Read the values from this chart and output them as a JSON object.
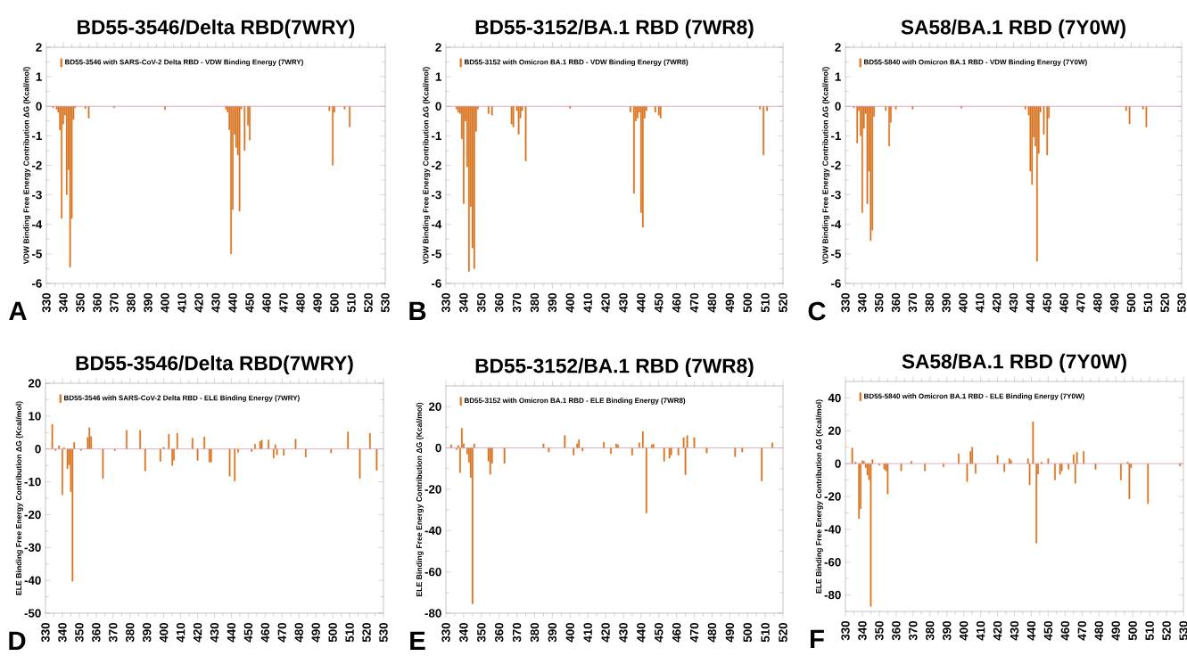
{
  "chart_data": [
    {
      "type": "bar",
      "title": "BD55-3546/Delta RBD(7WRY)",
      "ylabel": "VDW  Binding Free Energy Contribution    ΔG (Kcal/mol)",
      "annotations": [
        "A"
      ],
      "legend": "top left",
      "series": [
        {
          "name": "BD55-3546 with SARS-CoV-2 Delta RBD -  VDW Binding Energy (7WRY)",
          "color": "#d9731e",
          "x": [
            334,
            336,
            337,
            338,
            339,
            340,
            341,
            342,
            343,
            344,
            345,
            346,
            347,
            353,
            355,
            370,
            400,
            436,
            437,
            438,
            439,
            440,
            441,
            442,
            443,
            444,
            445,
            447,
            449,
            450,
            497,
            499,
            500,
            506,
            509
          ],
          "values": [
            -0.05,
            -0.1,
            -0.2,
            -0.8,
            -3.8,
            -0.6,
            -0.3,
            -3.0,
            -2.15,
            -5.45,
            -3.8,
            -0.45,
            -0.05,
            -0.08,
            -0.4,
            -0.05,
            -0.12,
            -0.1,
            -0.2,
            -0.8,
            -5.0,
            -3.5,
            -0.95,
            -1.4,
            -1.65,
            -3.55,
            -0.1,
            -1.5,
            -0.65,
            -1.15,
            -0.15,
            -2.0,
            -0.2,
            -0.1,
            -0.7
          ]
        }
      ],
      "xlim": [
        330,
        530
      ],
      "xticks": [
        330,
        340,
        350,
        360,
        370,
        380,
        390,
        400,
        410,
        420,
        430,
        440,
        450,
        460,
        470,
        480,
        490,
        500,
        510,
        520,
        530
      ],
      "ylim": [
        -6,
        2
      ],
      "yticks": [
        -6,
        -5,
        -4,
        -3,
        -2,
        -1,
        0,
        1,
        2
      ],
      "ref_lines": [
        {
          "axis": "y",
          "value": 0,
          "color": "#d898b8"
        }
      ]
    },
    {
      "type": "bar",
      "title": "BD55-3152/BA.1 RBD (7WR8)",
      "ylabel": "VDW  Binding Free Energy Contribution    ΔG (Kcal/mol)",
      "annotations": [
        "B"
      ],
      "legend": "top left",
      "series": [
        {
          "name": "BD55-3152 with Omicron BA.1 RBD -  VDW Binding Energy (7WR8)",
          "color": "#d9731e",
          "x": [
            336,
            337,
            338,
            339,
            340,
            341,
            342,
            343,
            344,
            345,
            346,
            347,
            348,
            354,
            356,
            367,
            368,
            370,
            371,
            372,
            373,
            375,
            400,
            434,
            436,
            437,
            438,
            439,
            440,
            441,
            442,
            443,
            448,
            450,
            451,
            507,
            509,
            511
          ],
          "values": [
            -0.1,
            -0.2,
            -0.25,
            -1.1,
            -3.3,
            -0.5,
            -2.05,
            -5.6,
            -3.4,
            -4.8,
            -5.5,
            -0.85,
            -0.1,
            -0.25,
            -0.3,
            -0.6,
            -0.7,
            -0.15,
            -0.95,
            -0.4,
            -0.15,
            -1.85,
            -0.07,
            -0.2,
            -2.95,
            -0.5,
            -0.4,
            -0.2,
            -3.6,
            -4.1,
            -0.4,
            -0.15,
            -0.2,
            -0.3,
            -0.4,
            -0.1,
            -1.65,
            -0.15
          ]
        }
      ],
      "xlim": [
        330,
        520
      ],
      "xticks": [
        330,
        340,
        350,
        360,
        370,
        380,
        390,
        400,
        410,
        420,
        430,
        440,
        450,
        460,
        470,
        480,
        490,
        500,
        510,
        520
      ],
      "ylim": [
        -6,
        2
      ],
      "yticks": [
        -6,
        -5,
        -4,
        -3,
        -2,
        -1,
        0,
        1,
        2
      ],
      "ref_lines": [
        {
          "axis": "y",
          "value": 0,
          "color": "#d898b8"
        }
      ]
    },
    {
      "type": "bar",
      "title": "SA58/BA.1 RBD (7Y0W)",
      "ylabel": "VDW Binding Free Energy Contribution    ΔG (Kcal/mol)",
      "annotations": [
        "C"
      ],
      "legend": "top left",
      "series": [
        {
          "name": "BD55-5840 with Omicron BA.1 RBD -  VDW Binding Energy (7Y0W)",
          "color": "#d9731e",
          "x": [
            335,
            337,
            338,
            339,
            340,
            341,
            342,
            343,
            344,
            345,
            346,
            347,
            354,
            356,
            357,
            360,
            370,
            399,
            437,
            439,
            440,
            441,
            442,
            443,
            444,
            445,
            446,
            448,
            450,
            451,
            497,
            499,
            507,
            509
          ],
          "values": [
            -0.05,
            -1.25,
            -0.15,
            -1.0,
            -3.6,
            -0.75,
            -0.25,
            -3.3,
            -2.2,
            -4.55,
            -4.2,
            -0.35,
            -0.15,
            -1.35,
            -0.55,
            -0.1,
            -0.1,
            -0.07,
            -0.1,
            -0.3,
            -2.2,
            -2.65,
            -1.05,
            -1.35,
            -5.25,
            -1.6,
            -0.2,
            -0.95,
            -1.65,
            -0.4,
            -0.15,
            -0.6,
            -0.1,
            -0.7
          ]
        }
      ],
      "xlim": [
        330,
        530
      ],
      "xticks": [
        330,
        340,
        350,
        360,
        370,
        380,
        390,
        400,
        410,
        420,
        430,
        440,
        450,
        460,
        470,
        480,
        490,
        500,
        510,
        520,
        530
      ],
      "ylim": [
        -6,
        2
      ],
      "yticks": [
        -6,
        -5,
        -4,
        -3,
        -2,
        -1,
        0,
        1,
        2
      ],
      "ref_lines": [
        {
          "axis": "y",
          "value": 0,
          "color": "#d898b8"
        }
      ]
    },
    {
      "type": "bar",
      "title": "BD55-3546/Delta RBD(7WRY)",
      "ylabel": "ELE Binding Free Energy Contribution    ΔG (Kcal/mol)",
      "annotations": [
        "D"
      ],
      "legend": "top left",
      "series": [
        {
          "name": "BD55-3546 with SARS-CoV-2 Delta RBD -  ELE Binding Energy (7WRY)",
          "color": "#d9731e",
          "x": [
            334,
            336,
            338,
            340,
            341,
            343,
            344,
            345,
            346,
            347,
            351,
            355,
            356,
            357,
            364,
            371,
            378,
            386,
            389,
            398,
            400,
            403,
            405,
            406,
            408,
            417,
            420,
            424,
            427,
            428,
            439,
            442,
            444,
            452,
            454,
            457,
            458,
            462,
            465,
            466,
            467,
            471,
            478,
            484,
            499,
            509,
            516,
            522,
            526
          ],
          "values": [
            7.5,
            -0.5,
            1.0,
            -14.0,
            0.4,
            -6.0,
            -4.8,
            -13.0,
            -40.3,
            2.0,
            -0.4,
            3.5,
            6.5,
            3.8,
            -9.0,
            -0.5,
            5.7,
            5.7,
            -6.7,
            -3.8,
            0.5,
            4.5,
            -5.0,
            -3.5,
            4.8,
            3.3,
            -3.5,
            3.7,
            -4.0,
            -4.0,
            -8.3,
            -9.8,
            -1.0,
            -0.8,
            1.5,
            2.3,
            2.7,
            2.8,
            -2.8,
            1.3,
            -1.8,
            -2.0,
            3.0,
            -2.5,
            -1.2,
            5.2,
            -9.0,
            4.8,
            -6.5
          ]
        }
      ],
      "xlim": [
        330,
        530
      ],
      "xticks": [
        330,
        340,
        350,
        360,
        370,
        380,
        390,
        400,
        410,
        420,
        430,
        440,
        450,
        460,
        470,
        480,
        490,
        500,
        510,
        520,
        530
      ],
      "ylim": [
        -50,
        20
      ],
      "yticks": [
        -50,
        -40,
        -30,
        -20,
        -10,
        0,
        10,
        20
      ],
      "ref_lines": [
        {
          "axis": "y",
          "value": 0,
          "color": "#d898b8"
        }
      ]
    },
    {
      "type": "bar",
      "title": "BD55-3152/BA.1 RBD (7WR8)",
      "ylabel": "ELE Binding Free Energy Contribution    ΔG (Kcal/mol)",
      "annotations": [
        "E"
      ],
      "legend": "top left",
      "series": [
        {
          "name": "BD55-3152 with Omicron BA.1 RBD -  ELE Binding Energy (7WR8)",
          "color": "#d9731e",
          "x": [
            333,
            336,
            337,
            338,
            339,
            340,
            342,
            343,
            344,
            345,
            346,
            354,
            355,
            356,
            363,
            385,
            388,
            397,
            402,
            404,
            405,
            407,
            419,
            423,
            426,
            427,
            435,
            439,
            441,
            443,
            446,
            447,
            453,
            456,
            457,
            461,
            464,
            465,
            466,
            470,
            477,
            493,
            497,
            508,
            514
          ],
          "values": [
            1.5,
            -0.8,
            1.2,
            -12.0,
            9.5,
            2.0,
            -3.0,
            -7.0,
            -14.3,
            -75.5,
            2.0,
            -6.5,
            -12.8,
            -7.5,
            -7.5,
            2.0,
            -2.0,
            6.0,
            -3.5,
            2.0,
            4.0,
            -1.5,
            2.8,
            -2.8,
            2.0,
            1.5,
            -3.5,
            2.5,
            8.0,
            -31.5,
            1.5,
            1.8,
            -6.5,
            -5.0,
            -3.5,
            -3.5,
            5.0,
            -13.0,
            6.0,
            5.0,
            -2.5,
            -4.3,
            -2.0,
            -16.0,
            2.5
          ]
        }
      ],
      "xlim": [
        330,
        520
      ],
      "xticks": [
        330,
        340,
        350,
        360,
        370,
        380,
        390,
        400,
        410,
        420,
        430,
        440,
        450,
        460,
        470,
        480,
        490,
        500,
        510,
        520
      ],
      "ylim": [
        -80,
        30
      ],
      "yticks": [
        -80,
        -60,
        -40,
        -20,
        0,
        20
      ],
      "ref_lines": [
        {
          "axis": "y",
          "value": 0,
          "color": "#d898b8"
        }
      ]
    },
    {
      "type": "bar",
      "title": "SA58/BA.1 RBD (7Y0W)",
      "ylabel": "ELE Binding Free Energy Contribution    ΔG (Kcal/mol)",
      "annotations": [
        "F"
      ],
      "legend": "top left",
      "series": [
        {
          "name": "BD55-5840 with Omicron BA.1 RBD -  ELE Binding Energy (7Y0W)",
          "color": "#d9731e",
          "x": [
            334,
            336,
            338,
            339,
            340,
            341,
            342,
            343,
            344,
            345,
            346,
            350,
            353,
            354,
            355,
            363,
            369,
            377,
            388,
            397,
            402,
            404,
            405,
            407,
            420,
            424,
            427,
            428,
            438,
            439,
            441,
            443,
            444,
            446,
            450,
            454,
            457,
            458,
            462,
            465,
            466,
            467,
            471,
            478,
            493,
            497,
            498,
            499,
            509,
            528
          ],
          "values": [
            9.5,
            1.0,
            -33.5,
            -27.5,
            1.8,
            1.5,
            -2.5,
            -7.0,
            -10.0,
            -87.0,
            2.5,
            -1.0,
            -3.5,
            -4.5,
            -18.5,
            -4.5,
            1.5,
            -4.5,
            -2.0,
            6.0,
            -11.0,
            7.5,
            10.0,
            -6.0,
            5.0,
            -5.0,
            3.0,
            2.0,
            3.0,
            -13.0,
            25.5,
            -48.5,
            -6.5,
            1.0,
            3.0,
            -10.0,
            -6.5,
            -4.5,
            -3.5,
            5.5,
            -12.0,
            7.0,
            7.5,
            -3.5,
            -10.0,
            1.0,
            -21.5,
            -2.5,
            -24.5,
            -1.5
          ]
        }
      ],
      "xlim": [
        330,
        530
      ],
      "xticks": [
        330,
        340,
        350,
        360,
        370,
        380,
        390,
        400,
        410,
        420,
        430,
        440,
        450,
        460,
        470,
        480,
        490,
        500,
        510,
        520,
        530
      ],
      "ylim": [
        -90,
        50
      ],
      "yticks": [
        -80,
        -60,
        -40,
        -20,
        0,
        20,
        40
      ],
      "ref_lines": [
        {
          "axis": "y",
          "value": 0,
          "color": "#d898b8"
        }
      ]
    }
  ]
}
